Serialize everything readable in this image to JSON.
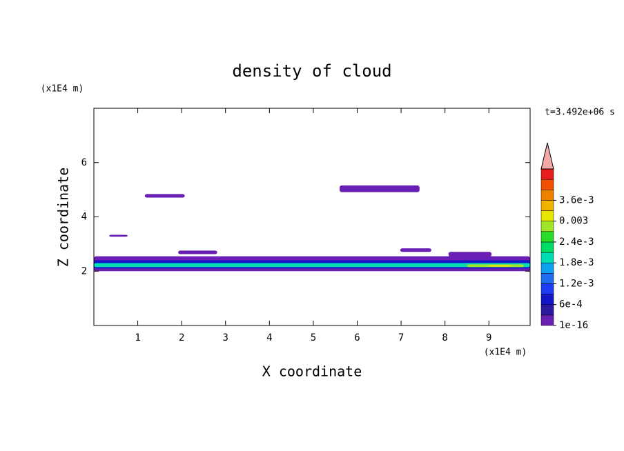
{
  "chart_data": {
    "type": "contour",
    "title": "density of cloud",
    "time_label": "t=3.492e+06 s",
    "x_label": "X coordinate",
    "y_label": "Z coordinate",
    "x_unit": "(x1E4 m)",
    "y_unit": "(x1E4 m)",
    "xlim": [
      0,
      9.94
    ],
    "ylim": [
      0,
      8
    ],
    "xticks": [
      1,
      2,
      3,
      4,
      5,
      6,
      7,
      8,
      9
    ],
    "yticks": [
      2,
      4,
      6
    ],
    "colorbar": {
      "lim": [
        0,
        0.0045
      ],
      "colors": [
        "#6a1fb4",
        "#2a1aa0",
        "#1414c8",
        "#1e3cf0",
        "#1e6ef0",
        "#10a0f0",
        "#00dcb4",
        "#00dc64",
        "#28dc28",
        "#a0e628",
        "#e6e600",
        "#f0b400",
        "#f08200",
        "#f05000",
        "#e61e1e"
      ],
      "over_color": "#f4a8a8",
      "ticks": [
        {
          "value": 1e-16,
          "label": "1e-16"
        },
        {
          "value": 0.0006,
          "label": "6e-4"
        },
        {
          "value": 0.0012,
          "label": "1.2e-3"
        },
        {
          "value": 0.0018,
          "label": "1.8e-3"
        },
        {
          "value": 0.0024,
          "label": "2.4e-3"
        },
        {
          "value": 0.003,
          "label": "0.003"
        },
        {
          "value": 0.0036,
          "label": "3.6e-3"
        }
      ]
    },
    "regions": [
      {
        "x": [
          0,
          9.94
        ],
        "z": [
          2.0,
          2.55
        ],
        "value": 0.0001
      },
      {
        "x": [
          1.16,
          2.07
        ],
        "z": [
          4.71,
          4.84
        ],
        "value": 0.0001
      },
      {
        "x": [
          5.6,
          7.42
        ],
        "z": [
          4.91,
          5.16
        ],
        "value": 0.0001
      },
      {
        "x": [
          0.35,
          0.77
        ],
        "z": [
          3.27,
          3.34
        ],
        "value": 0.0001
      },
      {
        "x": [
          1.92,
          2.81
        ],
        "z": [
          2.63,
          2.76
        ],
        "value": 0.0001
      },
      {
        "x": [
          6.98,
          7.69
        ],
        "z": [
          2.71,
          2.84
        ],
        "value": 0.0001
      },
      {
        "x": [
          8.08,
          9.06
        ],
        "z": [
          2.53,
          2.71
        ],
        "value": 0.0001
      },
      {
        "x": [
          0,
          9.94
        ],
        "z": [
          2.1,
          2.4
        ],
        "value": 0.0007
      },
      {
        "x": [
          0,
          9.94
        ],
        "z": [
          2.15,
          2.3
        ],
        "value": 0.0019
      },
      {
        "x": [
          8.5,
          9.8
        ],
        "z": [
          2.15,
          2.25
        ],
        "value": 0.0027
      },
      {
        "x": [
          9.0,
          9.5
        ],
        "z": [
          2.17,
          2.23
        ],
        "value": 0.0032
      }
    ]
  }
}
